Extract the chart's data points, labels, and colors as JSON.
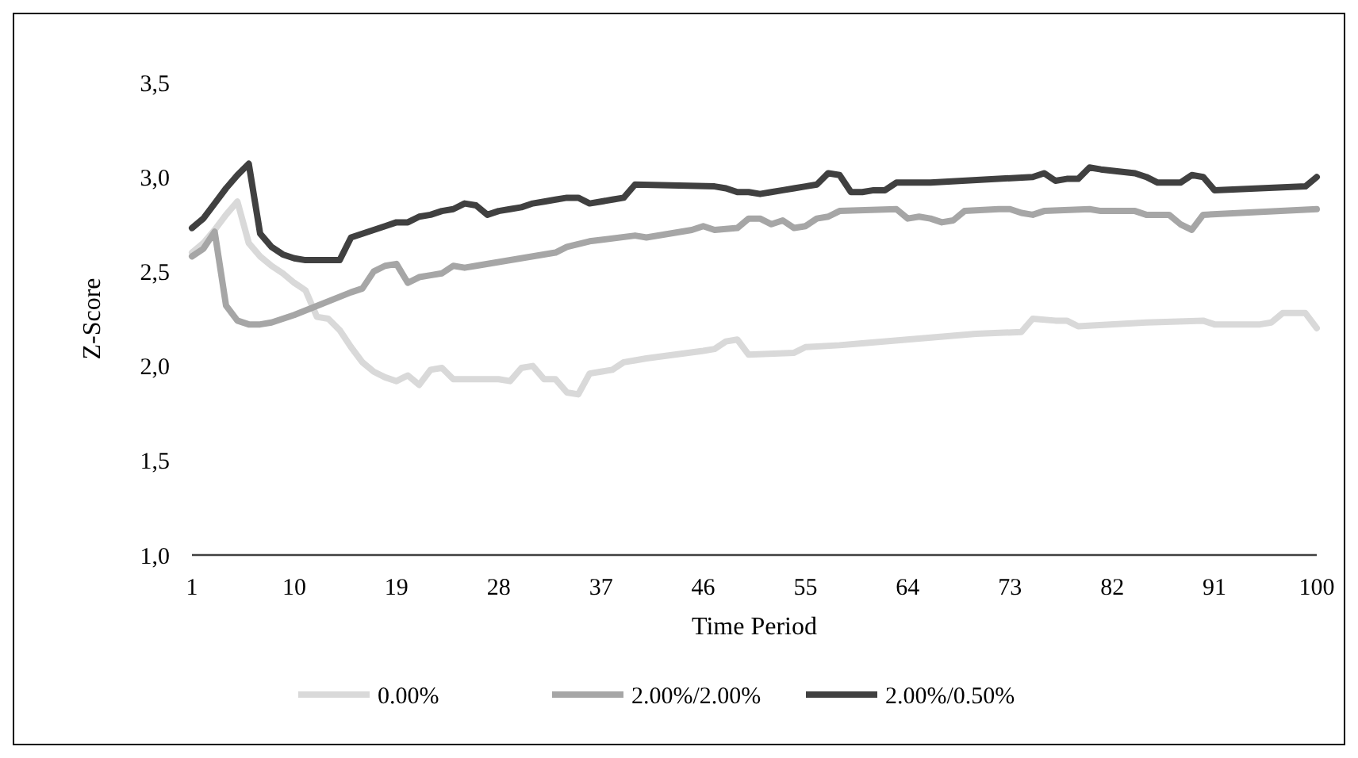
{
  "chart_data": {
    "type": "line",
    "xlabel": "Time Period",
    "ylabel": "Z-Score",
    "xlim": [
      1,
      100
    ],
    "xticks": [
      1,
      10,
      19,
      28,
      37,
      46,
      55,
      64,
      73,
      82,
      91,
      100
    ],
    "ylim": [
      1,
      3.5
    ],
    "yticks": [
      {
        "value": 1,
        "label": "1,0"
      },
      {
        "value": 1.5,
        "label": "1,5"
      },
      {
        "value": 2,
        "label": "2,0"
      },
      {
        "value": 2.5,
        "label": "2,5"
      },
      {
        "value": 3,
        "label": "3,0"
      },
      {
        "value": 3.5,
        "label": "3,5"
      }
    ],
    "grid": false,
    "legend": "bottom",
    "marker": "none",
    "line_style": "solid",
    "series": [
      {
        "name": "0.00%",
        "color": "#d9d9d9",
        "x": [
          1,
          2,
          3,
          4,
          5,
          6,
          7,
          8,
          9,
          10,
          11,
          12,
          13,
          14,
          15,
          16,
          17,
          18,
          19,
          20,
          21,
          22,
          23,
          24,
          28,
          29,
          30,
          31,
          32,
          33,
          34,
          35,
          36,
          37,
          38,
          39,
          40,
          41,
          46,
          47,
          48,
          49,
          50,
          54,
          55,
          58,
          60,
          70,
          74,
          75,
          77,
          78,
          79,
          85,
          90,
          91,
          95,
          96,
          97,
          99,
          100
        ],
        "values": [
          2.6,
          2.65,
          2.72,
          2.8,
          2.87,
          2.65,
          2.58,
          2.53,
          2.49,
          2.44,
          2.4,
          2.26,
          2.25,
          2.19,
          2.1,
          2.02,
          1.97,
          1.94,
          1.92,
          1.95,
          1.9,
          1.98,
          1.99,
          1.93,
          1.93,
          1.92,
          1.99,
          2.0,
          1.93,
          1.93,
          1.86,
          1.85,
          1.96,
          1.97,
          1.98,
          2.02,
          2.03,
          2.04,
          2.08,
          2.09,
          2.13,
          2.14,
          2.06,
          2.07,
          2.1,
          2.11,
          2.12,
          2.17,
          2.18,
          2.25,
          2.24,
          2.24,
          2.21,
          2.23,
          2.24,
          2.22,
          2.22,
          2.23,
          2.28,
          2.28,
          2.2
        ]
      },
      {
        "name": "2.00%/2.00%",
        "color": "#a6a6a6",
        "x": [
          1,
          2,
          3,
          4,
          5,
          6,
          7,
          8,
          9,
          10,
          15,
          16,
          17,
          18,
          19,
          20,
          21,
          22,
          23,
          24,
          25,
          26,
          33,
          34,
          36,
          40,
          41,
          45,
          46,
          47,
          49,
          50,
          51,
          52,
          53,
          54,
          55,
          56,
          57,
          58,
          63,
          64,
          65,
          66,
          67,
          68,
          69,
          72,
          73,
          74,
          75,
          76,
          80,
          81,
          84,
          85,
          87,
          88,
          89,
          90,
          100
        ],
        "values": [
          2.58,
          2.62,
          2.71,
          2.32,
          2.24,
          2.22,
          2.22,
          2.23,
          2.25,
          2.27,
          2.39,
          2.41,
          2.5,
          2.53,
          2.54,
          2.44,
          2.47,
          2.48,
          2.49,
          2.53,
          2.52,
          2.53,
          2.6,
          2.63,
          2.66,
          2.69,
          2.68,
          2.72,
          2.74,
          2.72,
          2.73,
          2.78,
          2.78,
          2.75,
          2.77,
          2.73,
          2.74,
          2.78,
          2.79,
          2.82,
          2.83,
          2.78,
          2.79,
          2.78,
          2.76,
          2.77,
          2.82,
          2.83,
          2.83,
          2.81,
          2.8,
          2.82,
          2.83,
          2.82,
          2.82,
          2.8,
          2.8,
          2.75,
          2.72,
          2.8,
          2.83
        ]
      },
      {
        "name": "2.00%/0.50%",
        "color": "#404040",
        "x": [
          1,
          2,
          3,
          4,
          5,
          6,
          7,
          8,
          9,
          10,
          11,
          14,
          15,
          16,
          17,
          18,
          19,
          20,
          21,
          22,
          23,
          24,
          25,
          26,
          27,
          28,
          29,
          30,
          31,
          32,
          33,
          34,
          35,
          36,
          37,
          38,
          39,
          40,
          47,
          48,
          49,
          50,
          51,
          52,
          53,
          54,
          55,
          56,
          57,
          58,
          59,
          60,
          61,
          62,
          63,
          66,
          75,
          76,
          77,
          78,
          79,
          80,
          81,
          84,
          85,
          86,
          88,
          89,
          90,
          91,
          99,
          100
        ],
        "values": [
          2.73,
          2.78,
          2.86,
          2.94,
          3.01,
          3.07,
          2.7,
          2.63,
          2.59,
          2.57,
          2.56,
          2.56,
          2.68,
          2.7,
          2.72,
          2.74,
          2.76,
          2.76,
          2.79,
          2.8,
          2.82,
          2.83,
          2.86,
          2.85,
          2.8,
          2.82,
          2.83,
          2.84,
          2.86,
          2.87,
          2.88,
          2.89,
          2.89,
          2.86,
          2.87,
          2.88,
          2.89,
          2.96,
          2.95,
          2.94,
          2.92,
          2.92,
          2.91,
          2.92,
          2.93,
          2.94,
          2.95,
          2.96,
          3.02,
          3.01,
          2.92,
          2.92,
          2.93,
          2.93,
          2.97,
          2.97,
          3.0,
          3.02,
          2.98,
          2.99,
          2.99,
          3.05,
          3.04,
          3.02,
          3.0,
          2.97,
          2.97,
          3.01,
          3.0,
          2.93,
          2.95,
          3.0
        ]
      }
    ]
  }
}
